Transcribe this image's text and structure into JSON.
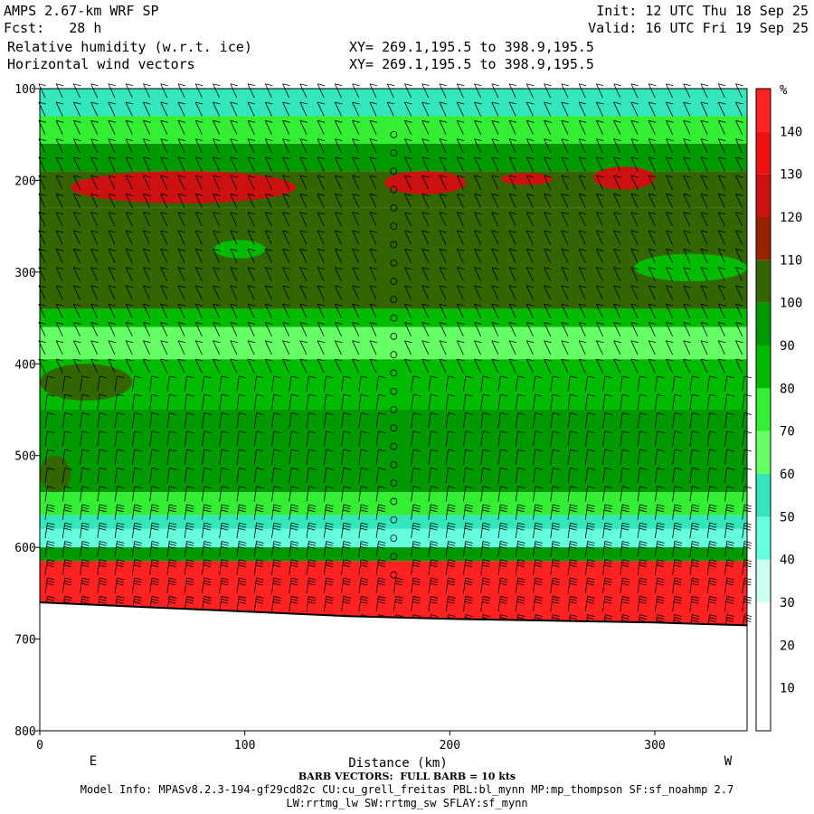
{
  "header": {
    "model": "AMPS 2.67-km WRF SP",
    "forecast": "Fcst:   28 h",
    "field1": "Relative humidity (w.r.t. ice)",
    "field2": "Horizontal wind vectors",
    "init": "Init: 12 UTC Thu 18 Sep 25",
    "valid": "Valid: 16 UTC Fri 19 Sep 25",
    "xy1": "XY= 269.1,195.5 to 398.9,195.5",
    "xy2": "XY= 269.1,195.5 to 398.9,195.5"
  },
  "footer": {
    "barb_note": "BARB VECTORS:  FULL BARB = 10 kts",
    "model_info": "Model Info: MPASv8.2.3-194-gf29cd82c CU:cu_grell_freitas PBL:bl_mynn MP:mp_thompson SF:sf_noahmp 2.7",
    "model_info2": "LW:rrtmg_lw SW:rrtmg_sw SFLAY:sf_mynn"
  },
  "chart_data": {
    "type": "heatmap",
    "title": "Relative humidity (w.r.t. ice)",
    "xlabel": "Distance (km)",
    "ylabel": "",
    "xlim": [
      0,
      345
    ],
    "ylim": [
      800,
      100
    ],
    "x_ticks": [
      0,
      100,
      200,
      300
    ],
    "y_ticks": [
      100,
      200,
      300,
      400,
      500,
      600,
      700,
      800
    ],
    "x_end_labels": {
      "left": "E",
      "right": "W"
    },
    "colorbar": {
      "unit": "%",
      "levels": [
        0,
        10,
        20,
        30,
        40,
        50,
        60,
        70,
        80,
        90,
        100,
        110,
        120,
        130,
        140,
        150
      ],
      "tick_labels": [
        10,
        20,
        30,
        40,
        50,
        60,
        70,
        80,
        90,
        100,
        110,
        120,
        130,
        140
      ],
      "colors": [
        "#ffffff",
        "#ffffff",
        "#ffffff",
        "#ccfff2",
        "#66ffdd",
        "#33e6bb",
        "#66ff66",
        "#33ee33",
        "#00bb00",
        "#009900",
        "#336600",
        "#992200",
        "#cc1111",
        "#ee1111",
        "#ff2222"
      ]
    },
    "layers": [
      {
        "p_top": 100,
        "p_bot": 130,
        "rh": 55
      },
      {
        "p_top": 130,
        "p_bot": 160,
        "rh": 75
      },
      {
        "p_top": 160,
        "p_bot": 190,
        "rh": 95
      },
      {
        "p_top": 190,
        "p_bot": 230,
        "rh": 105
      },
      {
        "p_top": 230,
        "p_bot": 340,
        "rh": 100
      },
      {
        "p_top": 340,
        "p_bot": 360,
        "rh": 85
      },
      {
        "p_top": 360,
        "p_bot": 395,
        "rh": 65
      },
      {
        "p_top": 395,
        "p_bot": 450,
        "rh": 85
      },
      {
        "p_top": 450,
        "p_bot": 540,
        "rh": 95
      },
      {
        "p_top": 540,
        "p_bot": 565,
        "rh": 75
      },
      {
        "p_top": 565,
        "p_bot": 580,
        "rh": 55
      },
      {
        "p_top": 580,
        "p_bot": 600,
        "rh": 45
      },
      {
        "p_top": 600,
        "p_bot": 615,
        "rh": 95
      },
      {
        "p_top": 615,
        "p_bot": 690,
        "rh": 145
      }
    ],
    "patches": [
      {
        "x0": 15,
        "x1": 125,
        "p0": 190,
        "p1": 225,
        "rh": 125
      },
      {
        "x0": 168,
        "x1": 208,
        "p0": 190,
        "p1": 215,
        "rh": 125
      },
      {
        "x0": 225,
        "x1": 250,
        "p0": 192,
        "p1": 205,
        "rh": 125
      },
      {
        "x0": 270,
        "x1": 300,
        "p0": 185,
        "p1": 210,
        "rh": 125
      },
      {
        "x0": 0,
        "x1": 45,
        "p0": 400,
        "p1": 440,
        "rh": 105
      },
      {
        "x0": 0,
        "x1": 15,
        "p0": 500,
        "p1": 540,
        "rh": 105
      },
      {
        "x0": 290,
        "x1": 345,
        "p0": 280,
        "p1": 310,
        "rh": 85
      },
      {
        "x0": 85,
        "x1": 110,
        "p0": 265,
        "p1": 285,
        "rh": 85
      }
    ],
    "terrain": [
      [
        0,
        660
      ],
      [
        50,
        665
      ],
      [
        100,
        670
      ],
      [
        150,
        675
      ],
      [
        200,
        678
      ],
      [
        250,
        680
      ],
      [
        300,
        682
      ],
      [
        345,
        685
      ]
    ],
    "barb_columns_km": [
      0,
      8.5,
      17,
      25.5,
      34,
      42.5,
      51,
      59.5,
      68,
      76.5,
      85,
      93.5,
      102,
      110.5,
      119,
      127.5,
      136,
      144.5,
      153,
      161.5,
      170,
      178.5,
      187,
      195.5,
      204,
      212.5,
      221,
      229.5,
      238,
      246.5,
      255,
      263.5,
      272,
      280.5,
      289,
      297.5,
      306,
      314.5,
      323,
      331.5,
      340
    ],
    "barb_levels_hpa": [
      110,
      130,
      150,
      170,
      190,
      210,
      230,
      250,
      270,
      290,
      310,
      330,
      350,
      370,
      390,
      410,
      430,
      450,
      470,
      490,
      510,
      530,
      550,
      570,
      590,
      610,
      630,
      650,
      670,
      690
    ],
    "calm_column_km": 172
  }
}
